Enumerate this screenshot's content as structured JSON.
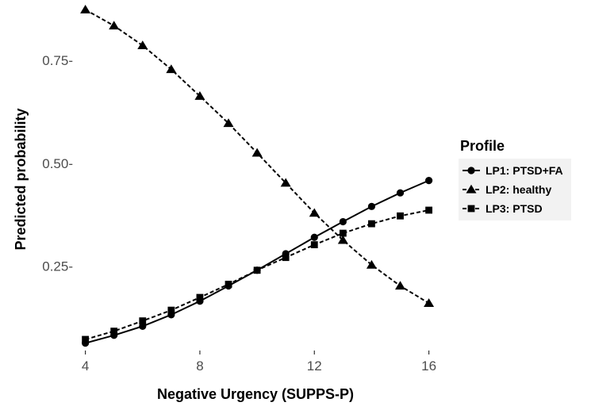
{
  "chart_data": {
    "type": "line",
    "xlabel": "Negative Urgency (SUPPS-P)",
    "ylabel": "Predicted probability",
    "x": [
      4,
      5,
      6,
      7,
      8,
      9,
      10,
      11,
      12,
      13,
      14,
      15,
      16
    ],
    "xlim": [
      3.9,
      16.15
    ],
    "ylim": [
      0.045,
      0.885
    ],
    "x_ticks": [
      4,
      8,
      12,
      16
    ],
    "y_ticks": [
      0.25,
      0.5,
      0.75
    ],
    "x_tick_labels": [
      "4",
      "8",
      "12",
      "16"
    ],
    "y_tick_labels": [
      "0.25-",
      "0.50-",
      "0.75-"
    ],
    "grid": false,
    "legend": {
      "title": "Profile",
      "position": "right"
    },
    "series": [
      {
        "name": "LP1: PTSD+FA",
        "marker": "circle",
        "line": "solid",
        "values": [
          0.063,
          0.082,
          0.104,
          0.132,
          0.165,
          0.202,
          0.24,
          0.28,
          0.32,
          0.358,
          0.395,
          0.428,
          0.458
        ]
      },
      {
        "name": "LP2: healthy",
        "marker": "triangle",
        "line": "dashed",
        "values": [
          0.873,
          0.834,
          0.786,
          0.728,
          0.663,
          0.597,
          0.525,
          0.452,
          0.379,
          0.313,
          0.253,
          0.202,
          0.16
        ]
      },
      {
        "name": "LP3: PTSD",
        "marker": "square",
        "line": "dashed",
        "values": [
          0.072,
          0.092,
          0.117,
          0.143,
          0.174,
          0.206,
          0.24,
          0.271,
          0.302,
          0.33,
          0.353,
          0.372,
          0.386
        ]
      }
    ]
  }
}
